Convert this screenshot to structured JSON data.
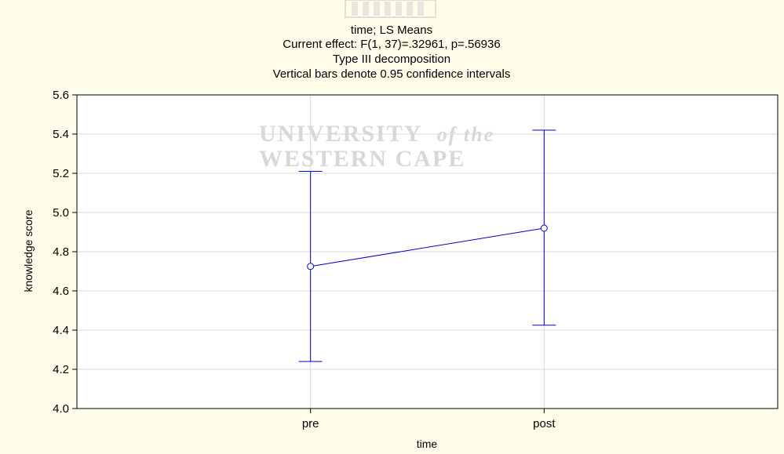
{
  "chart_data": {
    "type": "line",
    "title_lines": [
      "time; LS Means",
      "Current effect: F(1, 37)=.32961, p=.56936",
      "Type III decomposition",
      "Vertical bars denote 0.95 confidence intervals"
    ],
    "xlabel": "time",
    "ylabel": "knowledge score",
    "categories": [
      "pre",
      "post"
    ],
    "series": [
      {
        "values": [
          4.725,
          4.92
        ],
        "ci_lower": [
          4.24,
          4.425
        ],
        "ci_upper": [
          5.21,
          5.42
        ],
        "color": "#0000CC"
      }
    ],
    "ylim": [
      4.0,
      5.6
    ],
    "yticks": [
      "4.0",
      "4.2",
      "4.4",
      "4.6",
      "4.8",
      "5.0",
      "5.2",
      "5.4",
      "5.6"
    ],
    "grid": true,
    "watermark": {
      "line1": "UNIVERSITY",
      "line1_suffix": "of the",
      "line2": "WESTERN CAPE"
    }
  }
}
